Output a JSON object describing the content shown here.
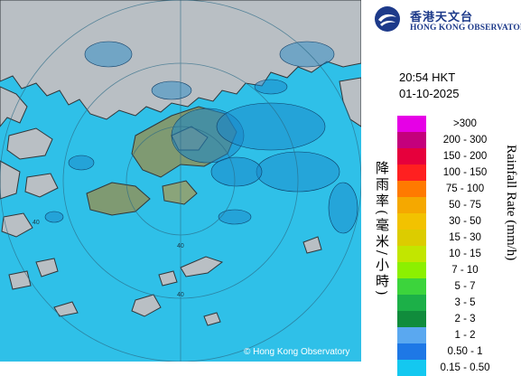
{
  "map": {
    "copyright": "© Hong Kong Observatory",
    "range_ring_labels": [
      "40",
      "40",
      "40"
    ],
    "colors": {
      "sea": "#2fc0e8",
      "land": "#b9bfc4",
      "coast": "#30363a",
      "echo": "#1a86c8",
      "terrain_green": "#7f9a72"
    }
  },
  "panel": {
    "org_zh": "香港天文台",
    "org_en": "HONG KONG OBSERVATORY",
    "time": "20:54 HKT",
    "date": "01-10-2025",
    "legend_title_zh": "降雨率(毫米/小時)",
    "legend_title_en": "Rainfall Rate (mm/h)",
    "legend": [
      {
        "label": ">300",
        "color": "#e600e6"
      },
      {
        "label": "200 - 300",
        "color": "#c4007c"
      },
      {
        "label": "150 - 200",
        "color": "#e6003c"
      },
      {
        "label": "100 - 150",
        "color": "#ff2020"
      },
      {
        "label": "75 - 100",
        "color": "#ff7a00"
      },
      {
        "label": "50 - 75",
        "color": "#f5a800"
      },
      {
        "label": "30 - 50",
        "color": "#f2c200"
      },
      {
        "label": "15 - 30",
        "color": "#dccc00"
      },
      {
        "label": "10 - 15",
        "color": "#c2e600"
      },
      {
        "label": "7 - 10",
        "color": "#8cf000"
      },
      {
        "label": "5 - 7",
        "color": "#3cd43c"
      },
      {
        "label": "3 - 5",
        "color": "#1cb048"
      },
      {
        "label": "2 - 3",
        "color": "#108c3c"
      },
      {
        "label": "1 - 2",
        "color": "#5aa8f0"
      },
      {
        "label": "0.50 - 1",
        "color": "#1e78e6"
      },
      {
        "label": "0.15 - 0.50",
        "color": "#14c8f0"
      }
    ]
  }
}
